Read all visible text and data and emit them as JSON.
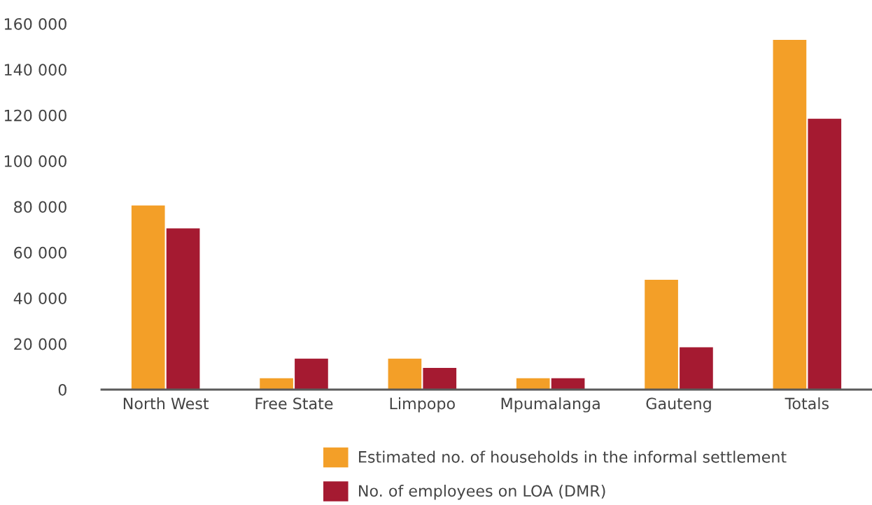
{
  "chart_data": {
    "type": "bar",
    "categories": [
      "North West",
      "Free State",
      "Limpopo",
      "Mpumalanga",
      "Gauteng",
      "Totals"
    ],
    "series": [
      {
        "name": "Estimated no. of households in the informal settlement",
        "color": "#f39f28",
        "values": [
          80500,
          5000,
          13500,
          5000,
          48000,
          153000
        ]
      },
      {
        "name": "No. of employees on LOA (DMR)",
        "color": "#a51a31",
        "values": [
          70500,
          13500,
          9500,
          5000,
          18500,
          118500
        ]
      }
    ],
    "ylim": [
      0,
      160000
    ],
    "yticks": [
      {
        "value": 0,
        "label": "0"
      },
      {
        "value": 20000,
        "label": "20 000"
      },
      {
        "value": 40000,
        "label": "40 000"
      },
      {
        "value": 60000,
        "label": "60 000"
      },
      {
        "value": 80000,
        "label": "80 000"
      },
      {
        "value": 100000,
        "label": "100 000"
      },
      {
        "value": 120000,
        "label": "120 000"
      },
      {
        "value": 140000,
        "label": "140 000"
      },
      {
        "value": 160000,
        "label": "160 000"
      }
    ],
    "grid": false,
    "legend": "bottom"
  }
}
